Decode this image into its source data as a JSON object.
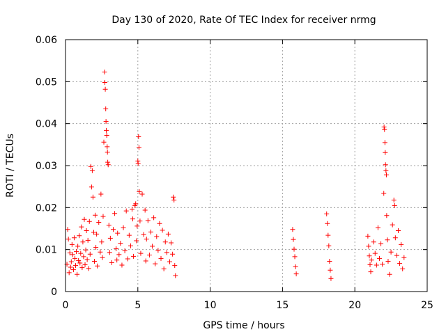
{
  "chart_data": {
    "type": "scatter",
    "title": "Day 130 of 2020, Rate Of TEC Index for receiver nrmg",
    "xlabel": "GPS time / hours",
    "ylabel": "ROTI / TECUs",
    "xlim": [
      0,
      25
    ],
    "ylim": [
      0,
      0.06
    ],
    "x_ticks": [
      "0",
      "5",
      "10",
      "15",
      "20",
      "25"
    ],
    "y_ticks": [
      "0",
      "0.01",
      "0.02",
      "0.03",
      "0.04",
      "0.05",
      "0.06"
    ],
    "grid": true,
    "marker": "plus",
    "colors": {
      "series": "#ff0000",
      "grid": "#a0a0a0",
      "axis": "#000000"
    },
    "series": [
      {
        "points": [
          [
            0.1,
            0.0065
          ],
          [
            0.15,
            0.0148
          ],
          [
            0.2,
            0.0125
          ],
          [
            0.25,
            0.0045
          ],
          [
            0.3,
            0.0092
          ],
          [
            0.35,
            0.0058
          ],
          [
            0.4,
            0.0071
          ],
          [
            0.45,
            0.0112
          ],
          [
            0.5,
            0.0088
          ],
          [
            0.55,
            0.0052
          ],
          [
            0.6,
            0.0128
          ],
          [
            0.65,
            0.0079
          ],
          [
            0.7,
            0.0062
          ],
          [
            0.75,
            0.0095
          ],
          [
            0.8,
            0.0041
          ],
          [
            0.85,
            0.0108
          ],
          [
            0.9,
            0.0074
          ],
          [
            0.95,
            0.0133
          ],
          [
            1.0,
            0.0068
          ],
          [
            1.05,
            0.0091
          ],
          [
            1.1,
            0.0154
          ],
          [
            1.15,
            0.0057
          ],
          [
            1.2,
            0.0118
          ],
          [
            1.25,
            0.0083
          ],
          [
            1.3,
            0.0172
          ],
          [
            1.35,
            0.0064
          ],
          [
            1.4,
            0.0099
          ],
          [
            1.45,
            0.0145
          ],
          [
            1.5,
            0.0076
          ],
          [
            1.55,
            0.0122
          ],
          [
            1.6,
            0.0055
          ],
          [
            1.65,
            0.0167
          ],
          [
            1.7,
            0.0089
          ],
          [
            1.75,
            0.0298
          ],
          [
            1.8,
            0.0249
          ],
          [
            1.85,
            0.0288
          ],
          [
            1.9,
            0.0225
          ],
          [
            1.95,
            0.0141
          ],
          [
            2.0,
            0.0072
          ],
          [
            2.05,
            0.0182
          ],
          [
            2.1,
            0.0105
          ],
          [
            2.15,
            0.0137
          ],
          [
            2.2,
            0.0061
          ],
          [
            2.3,
            0.0165
          ],
          [
            2.4,
            0.0094
          ],
          [
            2.45,
            0.0232
          ],
          [
            2.5,
            0.0118
          ],
          [
            2.55,
            0.0081
          ],
          [
            2.6,
            0.0179
          ],
          [
            2.65,
            0.0356
          ],
          [
            2.7,
            0.0523
          ],
          [
            2.72,
            0.0498
          ],
          [
            2.75,
            0.0482
          ],
          [
            2.78,
            0.0435
          ],
          [
            2.8,
            0.0405
          ],
          [
            2.82,
            0.0384
          ],
          [
            2.85,
            0.0372
          ],
          [
            2.88,
            0.0345
          ],
          [
            2.9,
            0.0332
          ],
          [
            2.92,
            0.0308
          ],
          [
            2.95,
            0.0302
          ],
          [
            3.0,
            0.0158
          ],
          [
            3.05,
            0.0093
          ],
          [
            3.1,
            0.0127
          ],
          [
            3.2,
            0.0069
          ],
          [
            3.3,
            0.0148
          ],
          [
            3.4,
            0.0186
          ],
          [
            3.5,
            0.0102
          ],
          [
            3.55,
            0.0075
          ],
          [
            3.6,
            0.0139
          ],
          [
            3.7,
            0.0088
          ],
          [
            3.8,
            0.0115
          ],
          [
            3.9,
            0.0063
          ],
          [
            4.0,
            0.0152
          ],
          [
            4.1,
            0.0097
          ],
          [
            4.2,
            0.0192
          ],
          [
            4.3,
            0.0078
          ],
          [
            4.4,
            0.0134
          ],
          [
            4.5,
            0.0109
          ],
          [
            4.6,
            0.0196
          ],
          [
            4.65,
            0.0173
          ],
          [
            4.7,
            0.0084
          ],
          [
            4.8,
            0.0205
          ],
          [
            4.85,
            0.0209
          ],
          [
            4.9,
            0.0121
          ],
          [
            4.95,
            0.0156
          ],
          [
            5.0,
            0.0311
          ],
          [
            5.02,
            0.0305
          ],
          [
            5.05,
            0.0369
          ],
          [
            5.08,
            0.0343
          ],
          [
            5.1,
            0.0238
          ],
          [
            5.15,
            0.0168
          ],
          [
            5.2,
            0.0091
          ],
          [
            5.3,
            0.0232
          ],
          [
            5.4,
            0.0136
          ],
          [
            5.5,
            0.0194
          ],
          [
            5.55,
            0.0073
          ],
          [
            5.6,
            0.0125
          ],
          [
            5.7,
            0.0169
          ],
          [
            5.8,
            0.0087
          ],
          [
            5.9,
            0.0142
          ],
          [
            6.0,
            0.0108
          ],
          [
            6.1,
            0.0176
          ],
          [
            6.2,
            0.0066
          ],
          [
            6.3,
            0.0131
          ],
          [
            6.4,
            0.0098
          ],
          [
            6.5,
            0.0162
          ],
          [
            6.6,
            0.0079
          ],
          [
            6.7,
            0.0146
          ],
          [
            6.8,
            0.0054
          ],
          [
            6.9,
            0.0118
          ],
          [
            7.0,
            0.0093
          ],
          [
            7.1,
            0.0137
          ],
          [
            7.2,
            0.0071
          ],
          [
            7.3,
            0.0116
          ],
          [
            7.4,
            0.0089
          ],
          [
            7.45,
            0.0225
          ],
          [
            7.5,
            0.0218
          ],
          [
            7.55,
            0.0062
          ],
          [
            7.6,
            0.0038
          ],
          [
            15.7,
            0.0148
          ],
          [
            15.75,
            0.0124
          ],
          [
            15.8,
            0.0101
          ],
          [
            15.85,
            0.0083
          ],
          [
            15.9,
            0.0059
          ],
          [
            15.95,
            0.0042
          ],
          [
            18.05,
            0.0185
          ],
          [
            18.1,
            0.0162
          ],
          [
            18.15,
            0.0134
          ],
          [
            18.2,
            0.0109
          ],
          [
            18.25,
            0.0072
          ],
          [
            18.3,
            0.0051
          ],
          [
            18.35,
            0.0031
          ],
          [
            20.9,
            0.0132
          ],
          [
            20.95,
            0.0108
          ],
          [
            21.0,
            0.0085
          ],
          [
            21.05,
            0.0064
          ],
          [
            21.1,
            0.0047
          ],
          [
            21.15,
            0.0075
          ],
          [
            21.3,
            0.0118
          ],
          [
            21.4,
            0.0091
          ],
          [
            21.5,
            0.0063
          ],
          [
            21.6,
            0.0152
          ],
          [
            21.7,
            0.0079
          ],
          [
            21.8,
            0.0114
          ],
          [
            21.9,
            0.0065
          ],
          [
            22.0,
            0.0234
          ],
          [
            22.02,
            0.0392
          ],
          [
            22.05,
            0.0386
          ],
          [
            22.08,
            0.0355
          ],
          [
            22.1,
            0.0331
          ],
          [
            22.12,
            0.0302
          ],
          [
            22.15,
            0.0288
          ],
          [
            22.18,
            0.0278
          ],
          [
            22.2,
            0.0181
          ],
          [
            22.25,
            0.0123
          ],
          [
            22.3,
            0.0072
          ],
          [
            22.4,
            0.0041
          ],
          [
            22.5,
            0.0094
          ],
          [
            22.6,
            0.0159
          ],
          [
            22.7,
            0.0218
          ],
          [
            22.75,
            0.0205
          ],
          [
            22.8,
            0.0128
          ],
          [
            22.9,
            0.0086
          ],
          [
            23.0,
            0.0145
          ],
          [
            23.1,
            0.0067
          ],
          [
            23.2,
            0.0112
          ],
          [
            23.3,
            0.0054
          ],
          [
            23.4,
            0.0081
          ]
        ]
      }
    ]
  }
}
